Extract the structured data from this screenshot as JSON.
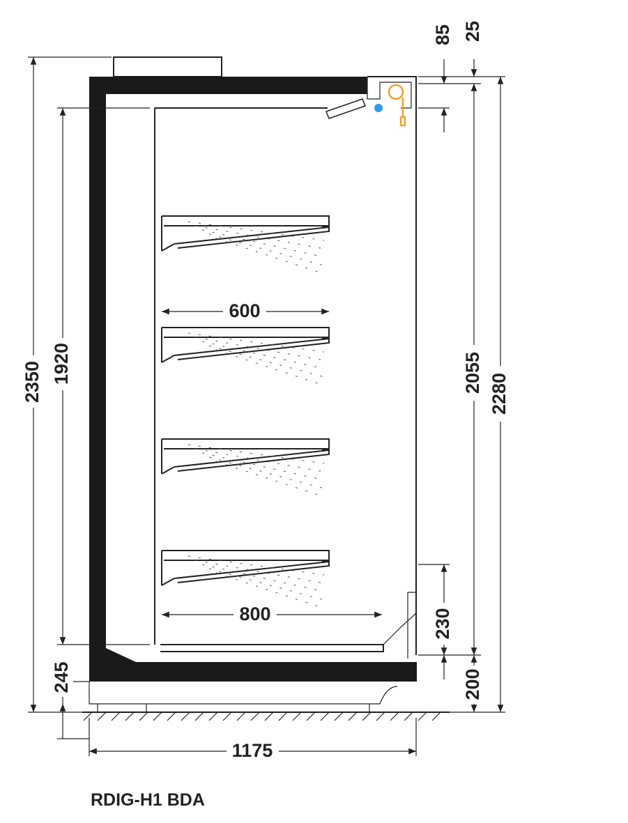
{
  "dimensions": {
    "top_front": "85",
    "top_gap": "25",
    "overall_height": "2350",
    "inner_height": "1920",
    "base_height": "245",
    "shelf_depth": "600",
    "bottom_depth": "800",
    "opening_height": "2055",
    "front_height": "2280",
    "riser_height": "230",
    "plinth_height": "200",
    "overall_depth": "1175"
  },
  "model": "RDIG-H1 BDA"
}
